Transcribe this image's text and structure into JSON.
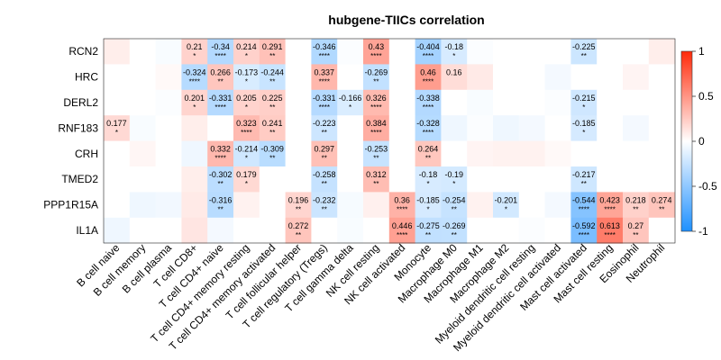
{
  "chart_data": {
    "type": "heatmap",
    "title": "hubgene-TIICs correlation",
    "rows": [
      "RCN2",
      "HRC",
      "DERL2",
      "RNF183",
      "CRH",
      "TMED2",
      "PPP1R15A",
      "IL1A"
    ],
    "columns": [
      "B cell naive",
      "B cell memory",
      "B cell plasma",
      "T cell CD8+",
      "T cell CD4+ naive",
      "T cell CD4+ memory resting",
      "T cell CD4+ memory activated",
      "T cell follicular helper",
      "T cell regulatory (Tregs)",
      "T cell gamma delta",
      "NK cell resting",
      "NK cell activated",
      "Monocyte",
      "Macrophage M0",
      "Macrophage M1",
      "Macrophage M2",
      "Myeloid dendritic cell resting",
      "Myeloid dendritic cell activated",
      "Mast cell activated",
      "Mast cell resting",
      "Eosinophil",
      "Neutrophil"
    ],
    "values": [
      [
        0.08,
        0.0,
        -0.03,
        0.21,
        -0.34,
        0.214,
        0.291,
        0.0,
        -0.346,
        -0.02,
        0.43,
        0.0,
        -0.404,
        -0.18,
        -0.02,
        0.0,
        0.0,
        0.0,
        -0.225,
        0.0,
        0.0,
        0.08
      ],
      [
        0.0,
        0.0,
        0.03,
        -0.324,
        0.266,
        -0.173,
        -0.244,
        0.0,
        0.337,
        0.0,
        -0.269,
        0.0,
        0.46,
        0.16,
        0.1,
        0.0,
        0.0,
        -0.05,
        0.0,
        0.0,
        0.05,
        0.0
      ],
      [
        0.0,
        0.0,
        -0.02,
        0.201,
        -0.331,
        0.205,
        0.225,
        0.0,
        -0.331,
        -0.166,
        0.326,
        0.0,
        -0.338,
        0.0,
        -0.03,
        0.0,
        0.0,
        -0.02,
        -0.215,
        0.0,
        0.0,
        0.0
      ],
      [
        0.177,
        -0.03,
        0.0,
        0.08,
        0.0,
        0.323,
        0.241,
        0.0,
        -0.223,
        0.0,
        0.384,
        0.0,
        -0.328,
        -0.07,
        -0.02,
        -0.07,
        -0.05,
        0.0,
        -0.185,
        0.0,
        -0.05,
        0.0
      ],
      [
        0.0,
        0.04,
        0.0,
        -0.07,
        0.332,
        -0.214,
        -0.309,
        0.0,
        0.297,
        0.0,
        -0.253,
        0.0,
        0.264,
        0.0,
        0.05,
        0.06,
        0.06,
        0.03,
        0.0,
        0.0,
        0.0,
        0.0
      ],
      [
        0.0,
        0.0,
        0.0,
        0.08,
        -0.302,
        0.179,
        0.0,
        0.0,
        -0.258,
        0.0,
        0.312,
        0.0,
        -0.18,
        -0.19,
        0.0,
        0.0,
        0.0,
        0.0,
        -0.217,
        0.0,
        0.0,
        0.0
      ],
      [
        0.0,
        -0.07,
        -0.06,
        0.1,
        -0.316,
        0.06,
        0.0,
        0.196,
        -0.232,
        -0.04,
        0.07,
        0.36,
        -0.185,
        -0.254,
        0.06,
        -0.201,
        0.0,
        -0.05,
        -0.544,
        0.423,
        0.218,
        0.274
      ],
      [
        -0.07,
        0.0,
        0.0,
        0.12,
        -0.05,
        0.0,
        0.0,
        0.272,
        0.0,
        -0.03,
        0.0,
        0.446,
        -0.275,
        -0.269,
        0.0,
        0.0,
        -0.02,
        0.0,
        -0.592,
        0.613,
        0.27,
        0.0
      ]
    ],
    "value_labels": [
      [
        "",
        "",
        "",
        "0.21",
        "-0.34",
        "0.214",
        "0.291",
        "",
        "-0.346",
        "",
        "0.43",
        "",
        "-0.404",
        "-0.18",
        "",
        "",
        "",
        "",
        "-0.225",
        "",
        "",
        ""
      ],
      [
        "",
        "",
        "",
        "-0.324",
        "0.266",
        "-0.173",
        "-0.244",
        "",
        "0.337",
        "",
        "-0.269",
        "",
        "0.46",
        "0.16",
        "",
        "",
        "",
        "",
        "",
        "",
        "",
        ""
      ],
      [
        "",
        "",
        "",
        "0.201",
        "-0.331",
        "0.205",
        "0.225",
        "",
        "-0.331",
        "-0.166",
        "0.326",
        "",
        "-0.338",
        "",
        "",
        "",
        "",
        "",
        "-0.215",
        "",
        "",
        ""
      ],
      [
        "0.177",
        "",
        "",
        "",
        "",
        "0.323",
        "0.241",
        "",
        "-0.223",
        "",
        "0.384",
        "",
        "-0.328",
        "",
        "",
        "",
        "",
        "",
        "-0.185",
        "",
        "",
        ""
      ],
      [
        "",
        "",
        "",
        "",
        "0.332",
        "-0.214",
        "-0.309",
        "",
        "0.297",
        "",
        "-0.253",
        "",
        "0.264",
        "",
        "",
        "",
        "",
        "",
        "",
        "",
        "",
        ""
      ],
      [
        "",
        "",
        "",
        "",
        "-0.302",
        "0.179",
        "",
        "",
        "-0.258",
        "",
        "0.312",
        "",
        "-0.18",
        "-0.19",
        "",
        "",
        "",
        "",
        "-0.217",
        "",
        "",
        ""
      ],
      [
        "",
        "",
        "",
        "",
        "-0.316",
        "",
        "",
        "0.196",
        "-0.232",
        "",
        "",
        "0.36",
        "-0.185",
        "-0.254",
        "",
        "-0.201",
        "",
        "",
        "-0.544",
        "0.423",
        "0.218",
        "0.274"
      ],
      [
        "",
        "",
        "",
        "",
        "",
        "",
        "",
        "0.272",
        "",
        "",
        "",
        "0.446",
        "-0.275",
        "-0.269",
        "",
        "",
        "",
        "",
        "-0.592",
        "0.613",
        "0.27",
        ""
      ]
    ],
    "significance": [
      [
        "",
        "",
        "",
        "*",
        "****",
        "*",
        "**",
        "",
        "****",
        "",
        "****",
        "",
        "****",
        "*",
        "",
        "",
        "",
        "",
        "**",
        "",
        "",
        ""
      ],
      [
        "",
        "",
        "",
        "****",
        "**",
        "*",
        "**",
        "",
        "****",
        "",
        "**",
        "",
        "****",
        "",
        "",
        "",
        "",
        "",
        "",
        "",
        "",
        ""
      ],
      [
        "",
        "",
        "",
        "*",
        "****",
        "*",
        "**",
        "",
        "****",
        "*",
        "****",
        "",
        "****",
        "",
        "",
        "",
        "",
        "",
        "*",
        "",
        "",
        ""
      ],
      [
        "*",
        "",
        "",
        "",
        "",
        "****",
        "**",
        "",
        "**",
        "",
        "****",
        "",
        "****",
        "",
        "",
        "",
        "",
        "",
        "*",
        "",
        "",
        ""
      ],
      [
        "",
        "",
        "",
        "",
        "****",
        "*",
        "**",
        "",
        "**",
        "",
        "**",
        "",
        "**",
        "",
        "",
        "",
        "",
        "",
        "",
        "",
        "",
        ""
      ],
      [
        "",
        "",
        "",
        "",
        "**",
        "*",
        "",
        "",
        "**",
        "",
        "**",
        "",
        "*",
        "*",
        "",
        "",
        "",
        "",
        "**",
        "",
        "",
        ""
      ],
      [
        "",
        "",
        "",
        "",
        "**",
        "",
        "",
        "**",
        "**",
        "",
        "",
        "****",
        "*",
        "**",
        "",
        "*",
        "",
        "",
        "****",
        "****",
        "**",
        "**"
      ],
      [
        "",
        "",
        "",
        "",
        "",
        "",
        "",
        "**",
        "",
        "",
        "",
        "****",
        "**",
        "**",
        "",
        "",
        "",
        "",
        "****",
        "****",
        "**",
        ""
      ]
    ],
    "color_scale": {
      "min": -1,
      "max": 1,
      "low_color": "#1E90FF",
      "mid_color": "#FFFFFF",
      "high_color": "#FF2A0A"
    },
    "legend": {
      "ticks": [
        "1",
        "0.5",
        "0",
        "-0.5",
        "-1"
      ],
      "tick_values": [
        1,
        0.5,
        0,
        -0.5,
        -1
      ],
      "placement": "right"
    }
  }
}
